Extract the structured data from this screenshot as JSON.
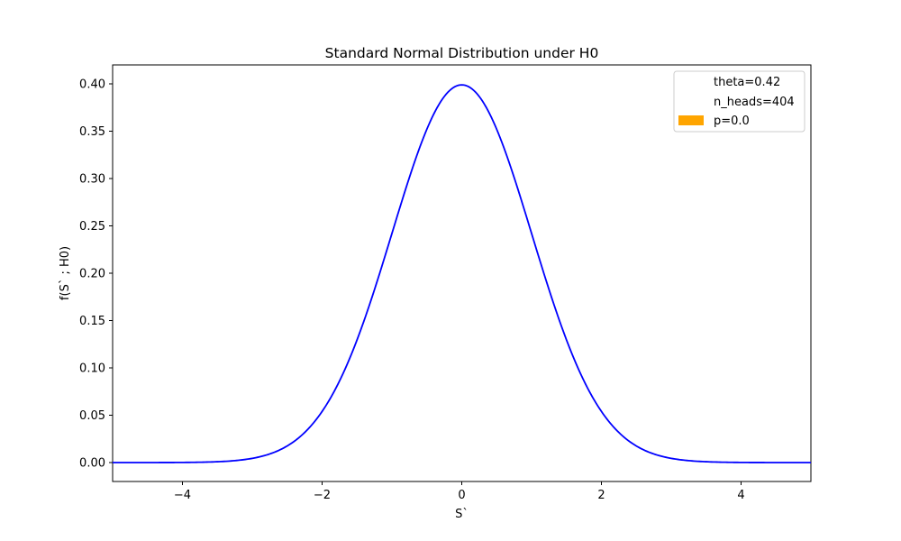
{
  "chart_data": {
    "type": "line",
    "title": "Standard Normal Distribution under H0",
    "xlabel": "S`",
    "ylabel": "f(S` ; H0)",
    "xlim": [
      -5,
      5
    ],
    "ylim": [
      -0.02,
      0.42
    ],
    "x_ticks": [
      -4,
      -2,
      0,
      2,
      4
    ],
    "x_tick_labels": [
      "−4",
      "−2",
      "0",
      "2",
      "4"
    ],
    "y_ticks": [
      0.0,
      0.05,
      0.1,
      0.15,
      0.2,
      0.25,
      0.3,
      0.35,
      0.4
    ],
    "y_tick_labels": [
      "0.00",
      "0.05",
      "0.10",
      "0.15",
      "0.20",
      "0.25",
      "0.30",
      "0.35",
      "0.40"
    ],
    "grid": false,
    "series": [
      {
        "function": "standard normal pdf",
        "color": "#0000ff",
        "x": [
          -5,
          -4.5,
          -4,
          -3.5,
          -3,
          -2.5,
          -2,
          -1.5,
          -1,
          -0.5,
          0,
          0.5,
          1,
          1.5,
          2,
          2.5,
          3,
          3.5,
          4,
          4.5,
          5
        ],
        "y": [
          0.0,
          0.0,
          0.0001,
          0.0009,
          0.0044,
          0.0175,
          0.054,
          0.1295,
          0.242,
          0.3521,
          0.3989,
          0.3521,
          0.242,
          0.1295,
          0.054,
          0.0175,
          0.0044,
          0.0009,
          0.0001,
          0.0,
          0.0
        ]
      }
    ],
    "legend": {
      "position": "top-right",
      "entries": [
        {
          "label": "theta=0.42",
          "color": "none"
        },
        {
          "label": "n_heads=404",
          "color": "none"
        },
        {
          "label": "p=0.0",
          "color": "#ffa500"
        }
      ]
    }
  }
}
